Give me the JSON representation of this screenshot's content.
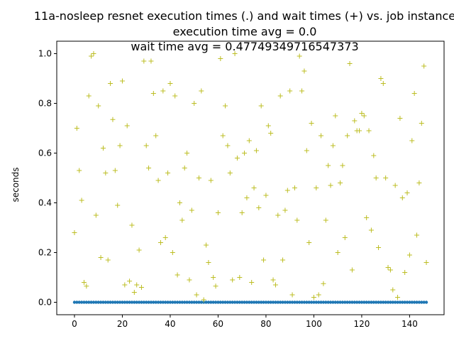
{
  "chart_data": {
    "type": "scatter",
    "title_lines": [
      "11a-nosleep resnet execution times (.) and wait times (+) vs. job instance",
      "execution time avg = 0.0",
      "wait time avg = 0.47749349716547373"
    ],
    "xlabel": "",
    "ylabel": "seconds",
    "xlim": [
      -7.4,
      154.4
    ],
    "ylim": [
      -0.05,
      1.05
    ],
    "xticks": [
      0,
      20,
      40,
      60,
      80,
      100,
      120,
      140
    ],
    "yticks": [
      0.0,
      0.2,
      0.4,
      0.6,
      0.8,
      1.0
    ],
    "ytick_labels": [
      "0.0",
      "0.2",
      "0.4",
      "0.6",
      "0.8",
      "1.0"
    ],
    "grid": false,
    "colors": {
      "execution": "#1f77b4",
      "wait": "#bcbd22"
    },
    "execution_times": {
      "x_start": 0,
      "x_end": 147,
      "value": 0.0
    },
    "wait_times": [
      0.28,
      0.7,
      0.53,
      0.41,
      0.08,
      0.065,
      0.83,
      0.99,
      1.0,
      0.35,
      0.79,
      0.18,
      0.62,
      0.52,
      0.17,
      0.88,
      0.735,
      0.53,
      0.39,
      0.63,
      0.89,
      0.07,
      0.71,
      0.085,
      0.31,
      0.04,
      0.07,
      0.21,
      0.06,
      0.97,
      0.63,
      0.54,
      0.97,
      0.84,
      0.67,
      0.49,
      0.24,
      0.85,
      0.26,
      0.52,
      0.88,
      0.2,
      0.83,
      0.11,
      0.4,
      0.33,
      0.54,
      0.6,
      0.09,
      0.37,
      0.8,
      0.03,
      0.5,
      0.85,
      0.01,
      0.23,
      0.16,
      0.49,
      0.1,
      0.065,
      0.36,
      0.98,
      0.67,
      0.79,
      0.63,
      0.52,
      0.09,
      1.0,
      0.58,
      0.1,
      0.36,
      0.6,
      0.42,
      0.65,
      0.08,
      0.46,
      0.61,
      0.38,
      0.79,
      0.17,
      0.43,
      0.71,
      0.68,
      0.09,
      0.07,
      0.35,
      0.83,
      0.17,
      0.37,
      0.45,
      0.85,
      0.03,
      0.46,
      0.33,
      0.99,
      0.85,
      0.93,
      0.61,
      0.24,
      0.72,
      0.02,
      0.46,
      0.03,
      0.67,
      0.075,
      0.33,
      0.55,
      0.47,
      0.63,
      0.75,
      0.2,
      0.48,
      0.55,
      0.26,
      0.67,
      0.96,
      0.13,
      0.73,
      0.69,
      0.69,
      0.76,
      0.75,
      0.34,
      0.69,
      0.29,
      0.59,
      0.5,
      0.22,
      0.9,
      0.88,
      0.5,
      0.14,
      0.13,
      0.05,
      0.47,
      0.02,
      0.74,
      0.42,
      0.12,
      0.44,
      0.19,
      0.65,
      0.84,
      0.27,
      0.48,
      0.72,
      0.95,
      0.16
    ]
  }
}
